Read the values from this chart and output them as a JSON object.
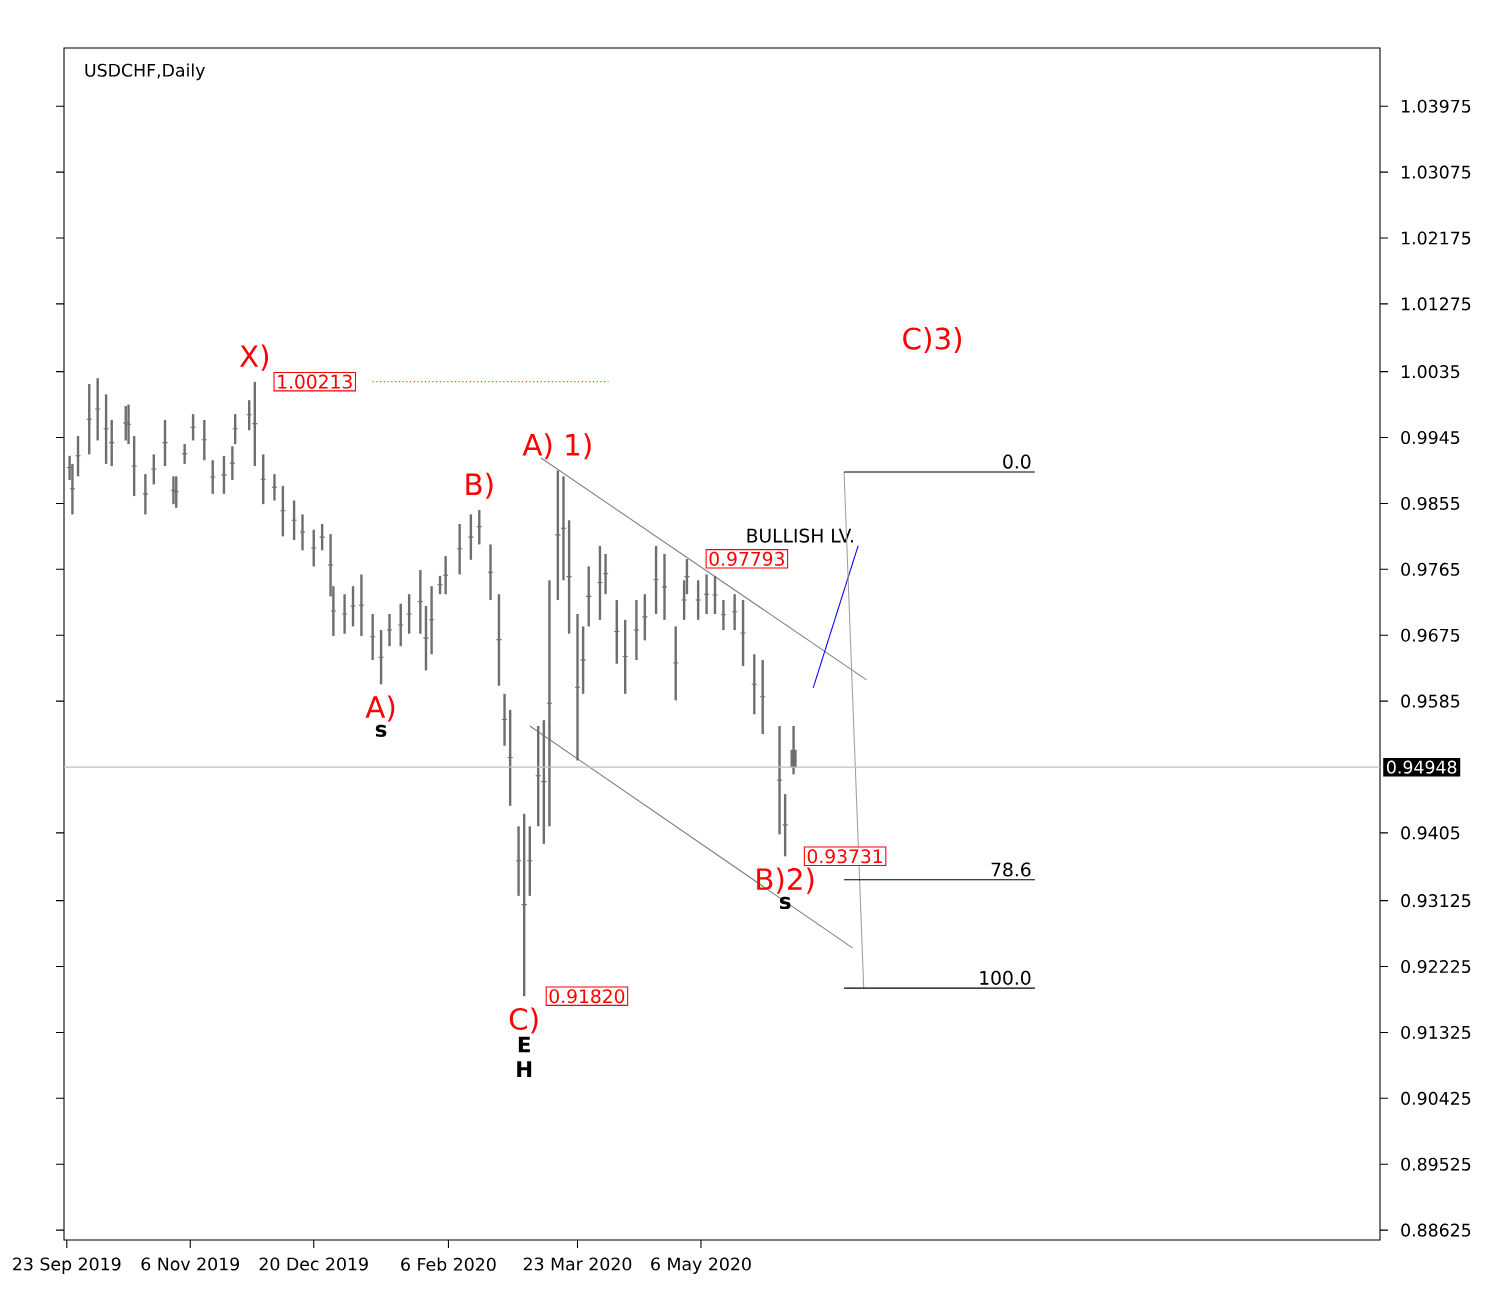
{
  "chart_data": {
    "type": "candlestick",
    "title": "USDCHF,Daily",
    "color": "#6e6e6e",
    "x": [
      "2019-09-24",
      "2019-09-25",
      "2019-09-27",
      "2019-10-01",
      "2019-10-04",
      "2019-10-07",
      "2019-10-09",
      "2019-10-14",
      "2019-10-15",
      "2019-10-17",
      "2019-10-21",
      "2019-10-24",
      "2019-10-28",
      "2019-10-31",
      "2019-11-01",
      "2019-11-04",
      "2019-11-07",
      "2019-11-11",
      "2019-11-14",
      "2019-11-18",
      "2019-11-21",
      "2019-11-22",
      "2019-11-27",
      "2019-11-29",
      "2019-12-02",
      "2019-12-06",
      "2019-12-09",
      "2019-12-13",
      "2019-12-16",
      "2019-12-20",
      "2019-12-23",
      "2019-12-26",
      "2019-12-27",
      "2019-12-31",
      "2020-01-03",
      "2020-01-06",
      "2020-01-10",
      "2020-01-13",
      "2020-01-16",
      "2020-01-20",
      "2020-01-23",
      "2020-01-27",
      "2020-01-29",
      "2020-01-31",
      "2020-02-03",
      "2020-02-05",
      "2020-02-10",
      "2020-02-14",
      "2020-02-17",
      "2020-02-21",
      "2020-02-24",
      "2020-02-26",
      "2020-02-28",
      "2020-03-02",
      "2020-03-04",
      "2020-03-06",
      "2020-03-09",
      "2020-03-11",
      "2020-03-13",
      "2020-03-16",
      "2020-03-18",
      "2020-03-20",
      "2020-03-23",
      "2020-03-25",
      "2020-03-27",
      "2020-03-31",
      "2020-04-02",
      "2020-04-06",
      "2020-04-09",
      "2020-04-13",
      "2020-04-16",
      "2020-04-20",
      "2020-04-23",
      "2020-04-27",
      "2020-04-30",
      "2020-05-01",
      "2020-05-05",
      "2020-05-08",
      "2020-05-11",
      "2020-05-14",
      "2020-05-18",
      "2020-05-21",
      "2020-05-25",
      "2020-05-28",
      "2020-06-03",
      "2020-06-05",
      "2020-06-08"
    ],
    "ohlc": [
      [
        0.9904,
        0.992,
        0.9887,
        0.9904
      ],
      [
        0.9875,
        0.9909,
        0.984,
        0.9875
      ],
      [
        0.992,
        0.9947,
        0.9892,
        0.992
      ],
      [
        0.997,
        1.0018,
        0.9922,
        0.997
      ],
      [
        0.9984,
        1.0026,
        0.9941,
        0.9984
      ],
      [
        0.9957,
        1.0004,
        0.9909,
        0.9957
      ],
      [
        0.9938,
        0.9969,
        0.9906,
        0.9938
      ],
      [
        0.9965,
        0.9988,
        0.9941,
        0.9965
      ],
      [
        0.9963,
        0.999,
        0.9936,
        0.9963
      ],
      [
        0.9906,
        0.9947,
        0.9865,
        0.9906
      ],
      [
        0.9868,
        0.9895,
        0.984,
        0.9868
      ],
      [
        0.9902,
        0.9922,
        0.9881,
        0.9902
      ],
      [
        0.9938,
        0.9969,
        0.9906,
        0.9938
      ],
      [
        0.9873,
        0.9892,
        0.9854,
        0.9873
      ],
      [
        0.9871,
        0.9892,
        0.9849,
        0.9871
      ],
      [
        0.9923,
        0.9936,
        0.9909,
        0.9923
      ],
      [
        0.9959,
        0.9977,
        0.9941,
        0.9959
      ],
      [
        0.9942,
        0.9969,
        0.9914,
        0.9942
      ],
      [
        0.9891,
        0.9914,
        0.9868,
        0.9891
      ],
      [
        0.9894,
        0.992,
        0.9868,
        0.9894
      ],
      [
        0.991,
        0.9933,
        0.9887,
        0.991
      ],
      [
        0.9957,
        0.9977,
        0.9936,
        0.9957
      ],
      [
        0.9976,
        0.9996,
        0.9955,
        0.9976
      ],
      [
        0.9964,
        1.0021,
        0.9906,
        0.9964
      ],
      [
        0.9888,
        0.9922,
        0.9854,
        0.9888
      ],
      [
        0.9877,
        0.9895,
        0.9859,
        0.9877
      ],
      [
        0.9845,
        0.9879,
        0.981,
        0.9845
      ],
      [
        0.9832,
        0.9859,
        0.9805,
        0.9832
      ],
      [
        0.9816,
        0.984,
        0.9791,
        0.9816
      ],
      [
        0.9794,
        0.9819,
        0.9769,
        0.9794
      ],
      [
        0.9809,
        0.9827,
        0.9791,
        0.9809
      ],
      [
        0.9771,
        0.9813,
        0.9728,
        0.9771
      ],
      [
        0.9708,
        0.9742,
        0.9674,
        0.9708
      ],
      [
        0.9704,
        0.9731,
        0.9677,
        0.9704
      ],
      [
        0.9715,
        0.9742,
        0.9687,
        0.9715
      ],
      [
        0.9716,
        0.9758,
        0.9674,
        0.9716
      ],
      [
        0.9673,
        0.9704,
        0.9641,
        0.9673
      ],
      [
        0.9645,
        0.9682,
        0.9608,
        0.9645
      ],
      [
        0.9682,
        0.9704,
        0.966,
        0.9682
      ],
      [
        0.9689,
        0.9718,
        0.966,
        0.9689
      ],
      [
        0.9704,
        0.9731,
        0.9677,
        0.9704
      ],
      [
        0.9721,
        0.9764,
        0.9677,
        0.9721
      ],
      [
        0.9671,
        0.9715,
        0.9627,
        0.9671
      ],
      [
        0.9696,
        0.9742,
        0.9649,
        0.9696
      ],
      [
        0.9744,
        0.9756,
        0.9731,
        0.9744
      ],
      [
        0.9757,
        0.9783,
        0.9731,
        0.9757
      ],
      [
        0.9793,
        0.9827,
        0.9758,
        0.9793
      ],
      [
        0.9809,
        0.984,
        0.9778,
        0.9809
      ],
      [
        0.9823,
        0.9846,
        0.9799,
        0.9823
      ],
      [
        0.9761,
        0.9799,
        0.9723,
        0.9761
      ],
      [
        0.9669,
        0.9731,
        0.9606,
        0.9669
      ],
      [
        0.956,
        0.9595,
        0.9524,
        0.956
      ],
      [
        0.9508,
        0.9573,
        0.9442,
        0.9508
      ],
      [
        0.9367,
        0.9414,
        0.9319,
        0.9367
      ],
      [
        0.9307,
        0.9431,
        0.9182,
        0.9307
      ],
      [
        0.9367,
        0.9414,
        0.9319,
        0.9367
      ],
      [
        0.9483,
        0.9551,
        0.9414,
        0.9483
      ],
      [
        0.9475,
        0.9559,
        0.939,
        0.9475
      ],
      [
        0.9582,
        0.975,
        0.9414,
        0.9582
      ],
      [
        0.9812,
        0.99,
        0.9723,
        0.9812
      ],
      [
        0.9821,
        0.9892,
        0.975,
        0.9821
      ],
      [
        0.9755,
        0.9832,
        0.9677,
        0.9755
      ],
      [
        0.9604,
        0.9704,
        0.9504,
        0.9604
      ],
      [
        0.9641,
        0.9687,
        0.9595,
        0.9641
      ],
      [
        0.9728,
        0.9769,
        0.9687,
        0.9728
      ],
      [
        0.9747,
        0.9797,
        0.9696,
        0.9747
      ],
      [
        0.9759,
        0.9786,
        0.9731,
        0.9759
      ],
      [
        0.968,
        0.9723,
        0.9636,
        0.968
      ],
      [
        0.9646,
        0.9696,
        0.9595,
        0.9646
      ],
      [
        0.9682,
        0.9723,
        0.9641,
        0.9682
      ],
      [
        0.97,
        0.9731,
        0.9668,
        0.97
      ],
      [
        0.9751,
        0.9797,
        0.9704,
        0.9751
      ],
      [
        0.9741,
        0.9786,
        0.9696,
        0.9741
      ],
      [
        0.9637,
        0.9687,
        0.9586,
        0.9637
      ],
      [
        0.9723,
        0.975,
        0.9696,
        0.9723
      ],
      [
        0.9755,
        0.9779,
        0.9731,
        0.9755
      ],
      [
        0.9723,
        0.975,
        0.9696,
        0.9723
      ],
      [
        0.9731,
        0.9758,
        0.9704,
        0.9731
      ],
      [
        0.973,
        0.9756,
        0.9704,
        0.973
      ],
      [
        0.9703,
        0.9723,
        0.9682,
        0.9703
      ],
      [
        0.9707,
        0.9731,
        0.9682,
        0.9707
      ],
      [
        0.9678,
        0.9723,
        0.9633,
        0.9678
      ],
      [
        0.9608,
        0.9649,
        0.9567,
        0.9608
      ],
      [
        0.9591,
        0.9641,
        0.954,
        0.9591
      ],
      [
        0.9477,
        0.9551,
        0.9403,
        0.9477
      ],
      [
        0.9416,
        0.9458,
        0.9373,
        0.9416
      ],
      [
        0.9518,
        0.9551,
        0.9485,
        0.9495
      ]
    ],
    "series": [
      {
        "type": "line",
        "color": "#ff3300",
        "line_style": "dotted",
        "x": [
          "2020-01-10",
          "2020-04-03"
        ],
        "values": [
          1.00213,
          1.00213
        ]
      },
      {
        "type": "line",
        "color": "#808080",
        "line_style": "solid",
        "x": [
          "2020-03-10",
          "2020-07-04"
        ],
        "values": [
          0.9917,
          0.9614
        ]
      },
      {
        "type": "line",
        "color": "#808080",
        "line_style": "solid",
        "x": [
          "2020-03-06",
          "2020-06-29"
        ],
        "values": [
          0.9551,
          0.9248
        ]
      },
      {
        "type": "line",
        "name": "BULLISH LV.",
        "color": "#0000ff",
        "line_style": "solid",
        "x": [
          "2020-06-15",
          "2020-07-01"
        ],
        "values": [
          0.9603,
          0.9797
        ]
      },
      {
        "type": "line",
        "color": "#a0a0a0",
        "line_style": "solid",
        "x": [
          "2020-06-26",
          "2020-07-03"
        ],
        "values": [
          0.9898,
          0.9193
        ]
      },
      {
        "type": "line",
        "name": "0.0",
        "color": "#000000",
        "line_style": "solid",
        "x": [
          "2020-06-26",
          "2020-09-02"
        ],
        "values": [
          0.9898,
          0.9898
        ]
      },
      {
        "type": "line",
        "name": "78.6",
        "color": "#000000",
        "line_style": "solid",
        "x": [
          "2020-06-26",
          "2020-09-02"
        ],
        "values": [
          0.9341,
          0.9341
        ]
      },
      {
        "type": "line",
        "name": "100.0",
        "color": "#000000",
        "line_style": "solid",
        "x": [
          "2020-06-26",
          "2020-09-02"
        ],
        "values": [
          0.9193,
          0.9193
        ]
      }
    ],
    "ref_lines": [
      {
        "axis": "y",
        "value": 0.94948,
        "label": "0.94948",
        "color": "#c0c0c0"
      }
    ],
    "annotations": [
      "C)3)",
      {
        "text": "X)",
        "x": "2019-11-29",
        "y": 1.0021
      },
      {
        "text": "1.00213",
        "x": "2019-11-29",
        "y": 1.00213
      },
      {
        "text": "B)",
        "x": "2020-02-17",
        "y": 0.9846
      },
      {
        "text": "A) 1)",
        "x": "2020-03-16",
        "y": 0.99
      },
      {
        "text": "A)",
        "x": "2020-01-13",
        "y": 0.9608
      },
      {
        "text": "s",
        "x": "2020-01-13",
        "y": 0.9608
      },
      {
        "text": "C)",
        "x": "2020-03-04",
        "y": 0.9182
      },
      {
        "text": "E",
        "x": "2020-03-04",
        "y": 0.9182
      },
      "H",
      {
        "text": "0.91820",
        "x": "2020-03-05",
        "y": 0.9182
      },
      {
        "text": "0.97793",
        "x": "2020-05-01",
        "y": 0.97793
      },
      {
        "text": "B)2)",
        "x": "2020-06-05",
        "y": 0.9373
      },
      {
        "text": "s",
        "x": "2020-06-05",
        "y": 0.9373
      },
      {
        "text": "0.93731",
        "x": "2020-06-05",
        "y": 0.93731
      }
    ],
    "xlim": [
      "2019-09-22",
      "2021-01-03"
    ],
    "ylim": [
      0.8849,
      1.0477
    ],
    "xticks": [
      {
        "value": "2019-09-23",
        "label": "23 Sep 2019"
      },
      {
        "value": "2019-11-06",
        "label": "6 Nov 2019"
      },
      {
        "value": "2019-12-20",
        "label": "20 Dec 2019"
      },
      {
        "value": "2020-02-06",
        "label": "6 Feb 2020"
      },
      {
        "value": "2020-03-23",
        "label": "23 Mar 2020"
      },
      {
        "value": "2020-05-06",
        "label": "6 May 2020"
      }
    ],
    "yticks": [
      0.88625,
      0.89525,
      0.90425,
      0.91325,
      0.92225,
      0.93125,
      0.9405,
      0.9585,
      0.9675,
      0.9765,
      0.9855,
      0.9945,
      1.0035,
      1.01275,
      1.02175,
      1.03075,
      1.03975
    ],
    "grid": false
  }
}
